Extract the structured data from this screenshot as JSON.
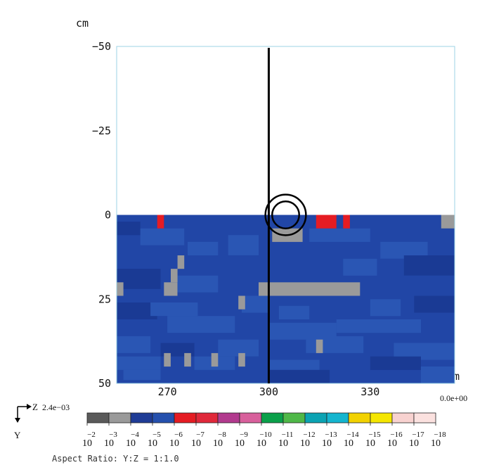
{
  "chart_data": {
    "type": "heatmap",
    "y_unit": "cm",
    "z_unit": "cm",
    "y_ticks": [
      "−50",
      "−25",
      "0",
      "25",
      "50"
    ],
    "z_ticks": [
      "270",
      "300",
      "330"
    ],
    "y_range": [
      -50,
      50
    ],
    "z_range": [
      255,
      355
    ],
    "direction_z": "Z",
    "direction_y": "Y",
    "scale_max": "2.4e−03",
    "scale_min": "0.0e+00",
    "aspect_ratio": "Aspect Ratio: Y:Z = 1:1.0",
    "vertical_line_z": 300,
    "circle": {
      "z": 305,
      "y": 0,
      "r_inner": 4,
      "r_outer": 6
    },
    "legend": [
      {
        "color": "#5a5a5a",
        "exponent": "−2"
      },
      {
        "color": "#9a9a9a",
        "exponent": "−3"
      },
      {
        "color": "#1f3c96",
        "exponent": "−4"
      },
      {
        "color": "#2550ad",
        "exponent": "−5"
      },
      {
        "color": "#e51c23",
        "exponent": "−6"
      },
      {
        "color": "#e0283a",
        "exponent": "−7"
      },
      {
        "color": "#b23a8e",
        "exponent": "−8"
      },
      {
        "color": "#d8609c",
        "exponent": "−9"
      },
      {
        "color": "#0aa04a",
        "exponent": "−10"
      },
      {
        "color": "#4fb848",
        "exponent": "−11"
      },
      {
        "color": "#0ba3b3",
        "exponent": "−12"
      },
      {
        "color": "#14b5cf",
        "exponent": "−13"
      },
      {
        "color": "#f2d200",
        "exponent": "−14"
      },
      {
        "color": "#f5e600",
        "exponent": "−15"
      },
      {
        "color": "#f8d2d0",
        "exponent": "−16"
      },
      {
        "color": "#fbe1df",
        "exponent": "−17"
      },
      {
        "color": "#ffffff",
        "exponent": "−18"
      }
    ],
    "base_label": "10",
    "colors": {
      "base": "#2146a6",
      "dark": "#1a3a94",
      "mid": "#2a56b4",
      "gray": "#9a9a9a",
      "red": "#e51c23"
    },
    "cells": [
      {
        "z": [
          255,
          355
        ],
        "y": [
          0,
          50
        ],
        "c": "base"
      },
      {
        "z": [
          255,
          262
        ],
        "y": [
          2,
          6
        ],
        "c": "dark"
      },
      {
        "z": [
          262,
          275
        ],
        "y": [
          4,
          9
        ],
        "c": "mid"
      },
      {
        "z": [
          276,
          285
        ],
        "y": [
          8,
          12
        ],
        "c": "mid"
      },
      {
        "z": [
          288,
          297
        ],
        "y": [
          6,
          12
        ],
        "c": "mid"
      },
      {
        "z": [
          312,
          330
        ],
        "y": [
          4,
          8
        ],
        "c": "mid"
      },
      {
        "z": [
          333,
          347
        ],
        "y": [
          8,
          13
        ],
        "c": "mid"
      },
      {
        "z": [
          322,
          332
        ],
        "y": [
          13,
          18
        ],
        "c": "mid"
      },
      {
        "z": [
          340,
          355
        ],
        "y": [
          12,
          18
        ],
        "c": "dark"
      },
      {
        "z": [
          255,
          268
        ],
        "y": [
          16,
          22
        ],
        "c": "dark"
      },
      {
        "z": [
          272,
          285
        ],
        "y": [
          18,
          23
        ],
        "c": "mid"
      },
      {
        "z": [
          292,
          300
        ],
        "y": [
          24,
          29
        ],
        "c": "mid"
      },
      {
        "z": [
          255,
          267
        ],
        "y": [
          26,
          31
        ],
        "c": "dark"
      },
      {
        "z": [
          265,
          279
        ],
        "y": [
          26,
          30
        ],
        "c": "mid"
      },
      {
        "z": [
          303,
          312
        ],
        "y": [
          27,
          31
        ],
        "c": "mid"
      },
      {
        "z": [
          330,
          339
        ],
        "y": [
          25,
          30
        ],
        "c": "mid"
      },
      {
        "z": [
          343,
          355
        ],
        "y": [
          24,
          29
        ],
        "c": "dark"
      },
      {
        "z": [
          270,
          290
        ],
        "y": [
          30,
          35
        ],
        "c": "mid"
      },
      {
        "z": [
          300,
          320
        ],
        "y": [
          32,
          37
        ],
        "c": "mid"
      },
      {
        "z": [
          320,
          345
        ],
        "y": [
          31,
          35
        ],
        "c": "mid"
      },
      {
        "z": [
          255,
          265
        ],
        "y": [
          36,
          41
        ],
        "c": "mid"
      },
      {
        "z": [
          268,
          278
        ],
        "y": [
          38,
          42
        ],
        "c": "dark"
      },
      {
        "z": [
          285,
          297
        ],
        "y": [
          37,
          42
        ],
        "c": "mid"
      },
      {
        "z": [
          311,
          328
        ],
        "y": [
          36,
          41
        ],
        "c": "mid"
      },
      {
        "z": [
          337,
          355
        ],
        "y": [
          38,
          43
        ],
        "c": "mid"
      },
      {
        "z": [
          255,
          268
        ],
        "y": [
          42,
          46
        ],
        "c": "mid"
      },
      {
        "z": [
          278,
          290
        ],
        "y": [
          42,
          46
        ],
        "c": "mid"
      },
      {
        "z": [
          300,
          315
        ],
        "y": [
          43,
          47
        ],
        "c": "mid"
      },
      {
        "z": [
          330,
          345
        ],
        "y": [
          42,
          46
        ],
        "c": "dark"
      },
      {
        "z": [
          257,
          268
        ],
        "y": [
          46,
          49
        ],
        "c": "mid"
      },
      {
        "z": [
          300,
          318
        ],
        "y": [
          46,
          50
        ],
        "c": "dark"
      },
      {
        "z": [
          345,
          355
        ],
        "y": [
          45,
          50
        ],
        "c": "mid"
      },
      {
        "z": [
          267,
          269
        ],
        "y": [
          0,
          4
        ],
        "c": "red"
      },
      {
        "z": [
          314,
          320
        ],
        "y": [
          0,
          4
        ],
        "c": "red"
      },
      {
        "z": [
          322,
          324
        ],
        "y": [
          0,
          4
        ],
        "c": "red"
      },
      {
        "z": [
          351,
          355
        ],
        "y": [
          0,
          4
        ],
        "c": "gray"
      },
      {
        "z": [
          301,
          310
        ],
        "y": [
          4,
          8
        ],
        "c": "gray"
      },
      {
        "z": [
          273,
          275
        ],
        "y": [
          12,
          16
        ],
        "c": "gray"
      },
      {
        "z": [
          271,
          273
        ],
        "y": [
          16,
          20
        ],
        "c": "gray"
      },
      {
        "z": [
          255,
          257
        ],
        "y": [
          20,
          24
        ],
        "c": "gray"
      },
      {
        "z": [
          269,
          273
        ],
        "y": [
          20,
          24
        ],
        "c": "gray"
      },
      {
        "z": [
          291,
          293
        ],
        "y": [
          24,
          28
        ],
        "c": "gray"
      },
      {
        "z": [
          297,
          327
        ],
        "y": [
          20,
          24
        ],
        "c": "gray"
      },
      {
        "z": [
          314,
          316
        ],
        "y": [
          37,
          41
        ],
        "c": "gray"
      },
      {
        "z": [
          269,
          271
        ],
        "y": [
          41,
          45
        ],
        "c": "gray"
      },
      {
        "z": [
          275,
          277
        ],
        "y": [
          41,
          45
        ],
        "c": "gray"
      },
      {
        "z": [
          283,
          285
        ],
        "y": [
          41,
          45
        ],
        "c": "gray"
      },
      {
        "z": [
          291,
          293
        ],
        "y": [
          41,
          45
        ],
        "c": "gray"
      }
    ]
  }
}
